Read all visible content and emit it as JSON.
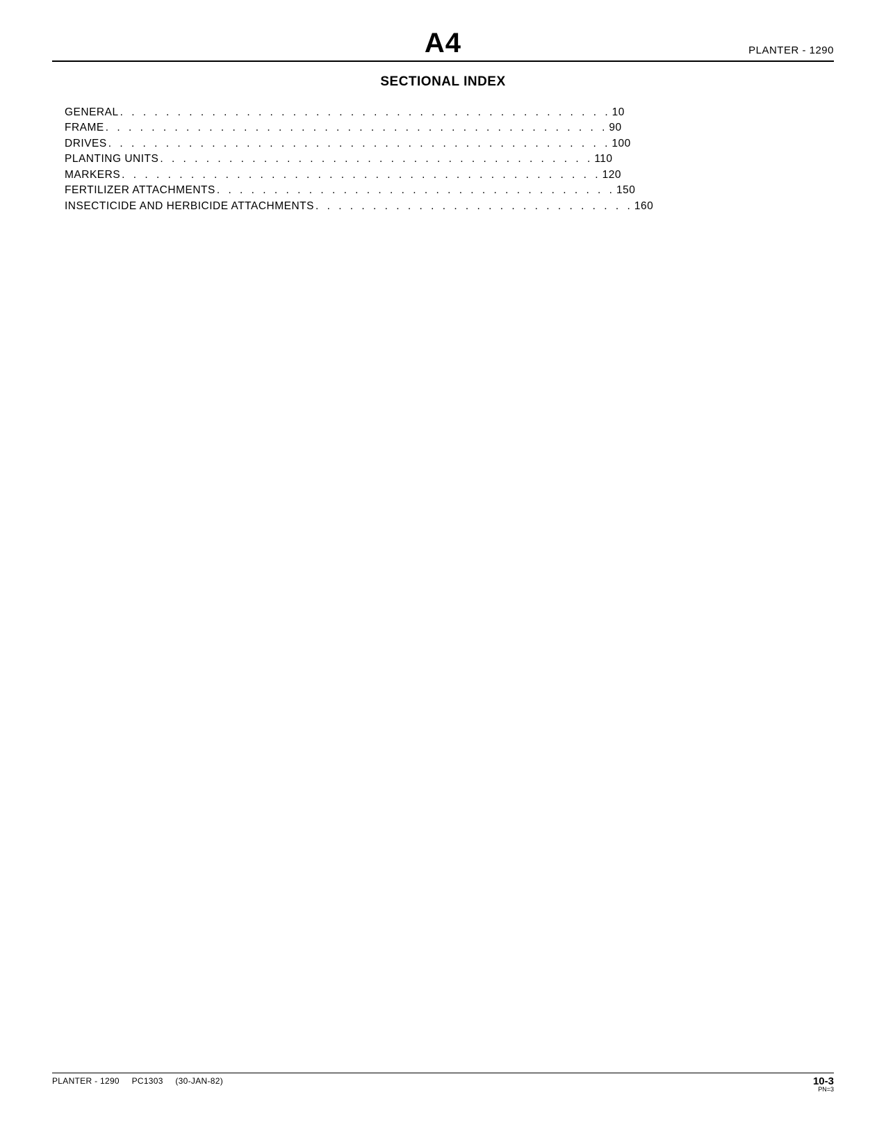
{
  "header": {
    "title": "A4",
    "right_text": "PLANTER - 1290"
  },
  "subtitle": "SECTIONAL INDEX",
  "index": {
    "entries": [
      {
        "label": "GENERAL",
        "dots": ". . . . . . . . . . . . . . . . . . . . . . . . . . . . . . . . . . . . . . . . . . .",
        "page": " 10"
      },
      {
        "label": "FRAME",
        "dots": " . . . . . . . . . . . . . . . . . . . . . . . . . . . . . . . . . . . . . . . . . . . .",
        "page": " 90"
      },
      {
        "label": "DRIVES",
        "dots": ". . . . . . . . . . . . . . . . . . . . . . . . . . . . . . . . . . . . . . . . . . . .",
        "page": "100"
      },
      {
        "label": "PLANTING UNITS",
        "dots": ". . . . . . . . . . . . . . . . . . . . . . . . . . . . . . . . . . . . . .",
        "page": "110"
      },
      {
        "label": "MARKERS",
        "dots": " . . . . . . . . . . . . . . . . . . . . . . . . . . . . . . . . . . . . . . . . . .",
        "page": "120"
      },
      {
        "label": "FERTILIZER ATTACHMENTS",
        "dots": ". . . . . . . . . . . . . . . . . . . . . . . . . . . . . . . . . . .",
        "page": "150"
      },
      {
        "label": "INSECTICIDE AND HERBICIDE ATTACHMENTS",
        "dots": " . . . . . . . . . . . . . . . . . . . . . . . . . . . .",
        "page": "160"
      }
    ]
  },
  "footer": {
    "left_model": "PLANTER - 1290",
    "left_code": "PC1303",
    "left_date": "(30-JAN-82)",
    "right_pagenum": "10-3",
    "right_pn": "PN=3"
  }
}
